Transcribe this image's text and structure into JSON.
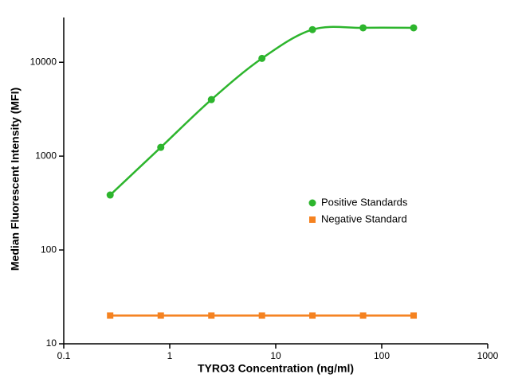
{
  "chart_data": {
    "type": "line",
    "xlabel": "TYRO3 Concentration (ng/ml)",
    "ylabel": "Median Fluorescent Intensity (MFI)",
    "x": [
      0.274,
      0.823,
      2.47,
      7.41,
      22.2,
      66.7,
      200
    ],
    "series": [
      {
        "name": "Positive Standards",
        "color": "#2db52d",
        "marker": "circle",
        "values": [
          385,
          1240,
          4000,
          11000,
          22300,
          23300,
          23300
        ]
      },
      {
        "name": "Negative Standard",
        "color": "#f58220",
        "marker": "square",
        "values": [
          20,
          20,
          20,
          20,
          20,
          20,
          20
        ]
      }
    ],
    "xlim": [
      0.1,
      1000
    ],
    "xticks": [
      0.1,
      1,
      10,
      100,
      1000
    ],
    "xscale": "log",
    "ylim": [
      10,
      30000
    ],
    "yticks": [
      10,
      100,
      1000,
      10000
    ],
    "yscale": "log",
    "legend": "right",
    "grid": false
  }
}
